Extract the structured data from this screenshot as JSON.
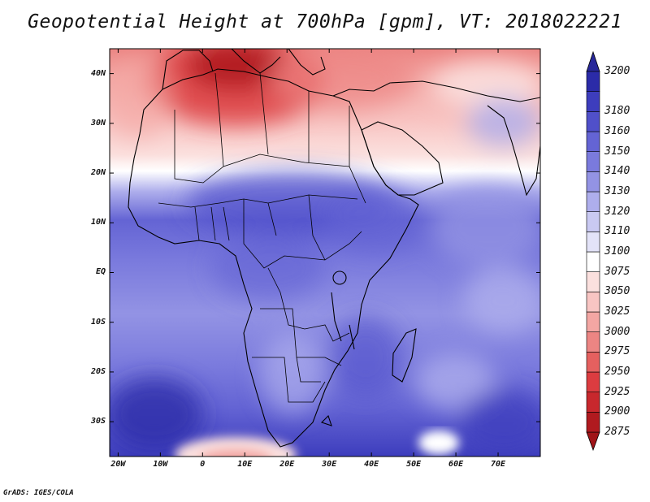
{
  "title": "Geopotential Height at 700hPa [gpm], VT: 2018022221",
  "credit": "GrADS: IGES/COLA",
  "map": {
    "lon_range": [
      -22,
      80
    ],
    "lat_range": [
      -37,
      45
    ],
    "x_ticks": [
      {
        "lon": -20,
        "label": "20W"
      },
      {
        "lon": -10,
        "label": "10W"
      },
      {
        "lon": 0,
        "label": "0"
      },
      {
        "lon": 10,
        "label": "10E"
      },
      {
        "lon": 20,
        "label": "20E"
      },
      {
        "lon": 30,
        "label": "30E"
      },
      {
        "lon": 40,
        "label": "40E"
      },
      {
        "lon": 50,
        "label": "50E"
      },
      {
        "lon": 60,
        "label": "60E"
      },
      {
        "lon": 70,
        "label": "70E"
      }
    ],
    "y_ticks": [
      {
        "lat": 40,
        "label": "40N"
      },
      {
        "lat": 30,
        "label": "30N"
      },
      {
        "lat": 20,
        "label": "20N"
      },
      {
        "lat": 10,
        "label": "10N"
      },
      {
        "lat": 0,
        "label": "EQ"
      },
      {
        "lat": -10,
        "label": "10S"
      },
      {
        "lat": -20,
        "label": "20S"
      },
      {
        "lat": -30,
        "label": "30S"
      }
    ]
  },
  "colorbar": {
    "levels": [
      "2875",
      "2900",
      "2925",
      "2950",
      "2975",
      "3000",
      "3025",
      "3050",
      "3075",
      "3100",
      "3110",
      "3120",
      "3130",
      "3140",
      "3150",
      "3160",
      "3180",
      "3200"
    ],
    "colors": [
      "#b01a1f",
      "#c8282d",
      "#dc3c40",
      "#e5605f",
      "#ec8583",
      "#f3a6a3",
      "#f8c5c3",
      "#fbe0de",
      "#ffffff",
      "#e3e3f8",
      "#c9c9f2",
      "#aeaeec",
      "#9393e4",
      "#7a7add",
      "#6464d4",
      "#5050ca",
      "#3d3dbd",
      "#2b2ba8"
    ]
  }
}
